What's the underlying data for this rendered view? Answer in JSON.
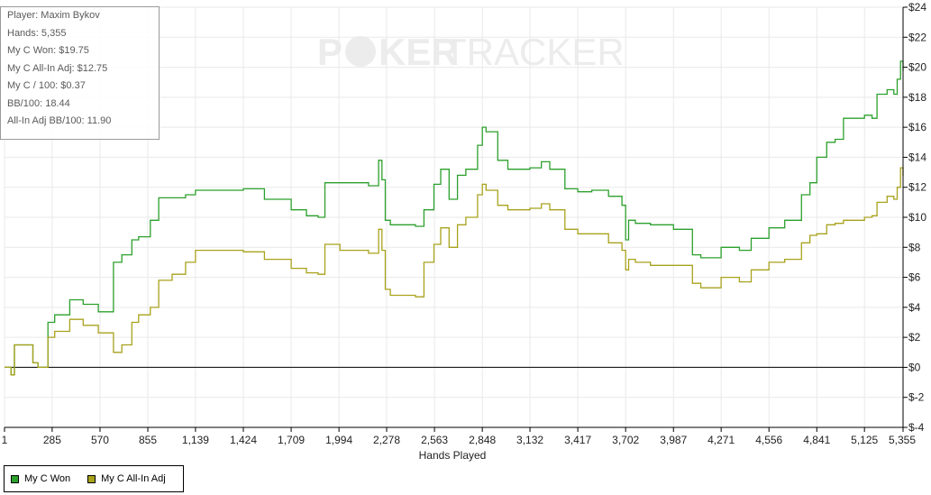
{
  "info_box": {
    "lines": [
      "Player: Maxim Bykov",
      "Hands: 5,355",
      "My C Won: $19.75",
      "My C All-In Adj: $12.75",
      "My C / 100: $0.37",
      "BB/100: 18.44",
      "All-In Adj BB/100: 11.90"
    ]
  },
  "watermark": {
    "left": "P",
    "middle": "KER",
    "right": "TRACKER"
  },
  "colors": {
    "won": "#2ca02c",
    "adj": "#a8a21c",
    "grid": "#e9e9e9",
    "zero_line": "#000000",
    "watermark": "#ececec"
  },
  "chart_data": {
    "type": "line",
    "title": "",
    "xlabel": "Hands Played",
    "ylabel": "",
    "xlim": [
      1,
      5355
    ],
    "ylim": [
      -4,
      24
    ],
    "grid": true,
    "legend_placement": "bottom-left",
    "x_ticks": [
      {
        "value": 1,
        "label": "1"
      },
      {
        "value": 285,
        "label": "285"
      },
      {
        "value": 570,
        "label": "570"
      },
      {
        "value": 855,
        "label": "855"
      },
      {
        "value": 1139,
        "label": "1,139"
      },
      {
        "value": 1424,
        "label": "1,424"
      },
      {
        "value": 1709,
        "label": "1,709"
      },
      {
        "value": 1994,
        "label": "1,994"
      },
      {
        "value": 2278,
        "label": "2,278"
      },
      {
        "value": 2563,
        "label": "2,563"
      },
      {
        "value": 2848,
        "label": "2,848"
      },
      {
        "value": 3132,
        "label": "3,132"
      },
      {
        "value": 3417,
        "label": "3,417"
      },
      {
        "value": 3702,
        "label": "3,702"
      },
      {
        "value": 3987,
        "label": "3,987"
      },
      {
        "value": 4271,
        "label": "4,271"
      },
      {
        "value": 4556,
        "label": "4,556"
      },
      {
        "value": 4841,
        "label": "4,841"
      },
      {
        "value": 5125,
        "label": "5,125"
      },
      {
        "value": 5355,
        "label": "5,355"
      }
    ],
    "y_ticks": [
      {
        "value": 24,
        "label": "$24"
      },
      {
        "value": 22,
        "label": "$22"
      },
      {
        "value": 20,
        "label": "$20"
      },
      {
        "value": 18,
        "label": "$18"
      },
      {
        "value": 16,
        "label": "$16"
      },
      {
        "value": 14,
        "label": "$14"
      },
      {
        "value": 12,
        "label": "$12"
      },
      {
        "value": 10,
        "label": "$10"
      },
      {
        "value": 8,
        "label": "$8"
      },
      {
        "value": 6,
        "label": "$6"
      },
      {
        "value": 4,
        "label": "$4"
      },
      {
        "value": 2,
        "label": "$2"
      },
      {
        "value": 0,
        "label": "$0"
      },
      {
        "value": -2,
        "label": "$-2"
      },
      {
        "value": -4,
        "label": "$-4"
      }
    ],
    "series": [
      {
        "name": "My C Won",
        "color": "#2ca02c",
        "x": [
          1,
          40,
          60,
          150,
          170,
          200,
          260,
          300,
          390,
          470,
          560,
          650,
          700,
          760,
          800,
          870,
          920,
          1000,
          1080,
          1139,
          1300,
          1424,
          1550,
          1709,
          1800,
          1870,
          1910,
          2000,
          2170,
          2230,
          2250,
          2270,
          2300,
          2450,
          2500,
          2560,
          2600,
          2650,
          2700,
          2750,
          2820,
          2848,
          2870,
          2940,
          3000,
          3132,
          3200,
          3250,
          3340,
          3417,
          3500,
          3600,
          3680,
          3702,
          3720,
          3760,
          3850,
          3987,
          4100,
          4150,
          4271,
          4380,
          4450,
          4556,
          4650,
          4750,
          4800,
          4841,
          4900,
          4950,
          5000,
          5125,
          5170,
          5200,
          5260,
          5300,
          5320,
          5340,
          5355
        ],
        "values": [
          0,
          -0.5,
          1.5,
          1.5,
          0.3,
          0,
          3,
          3.5,
          4.5,
          4.2,
          3.7,
          7,
          7.5,
          8.5,
          8.7,
          9.8,
          11.3,
          11.3,
          11.5,
          11.8,
          11.8,
          11.9,
          11.2,
          10.5,
          10.1,
          10.0,
          12.3,
          12.3,
          12.1,
          13.8,
          12.5,
          9.8,
          9.5,
          9.4,
          10.5,
          12.2,
          13.2,
          11.2,
          12.8,
          13.2,
          14.8,
          16,
          15.7,
          13.8,
          13.2,
          13.3,
          13.7,
          13.2,
          11.9,
          11.7,
          11.8,
          11.4,
          10.8,
          8.5,
          9.8,
          9.6,
          9.5,
          9.2,
          7.5,
          7.3,
          8.0,
          7.8,
          8.6,
          9.3,
          9.8,
          11.5,
          12.3,
          14.0,
          15.0,
          15.2,
          16.6,
          16.8,
          16.6,
          18.2,
          18.5,
          18.2,
          19.2,
          20.4,
          19.75
        ]
      },
      {
        "name": "My C All-In Adj",
        "color": "#a8a21c",
        "x": [
          1,
          40,
          60,
          150,
          170,
          200,
          260,
          300,
          390,
          470,
          560,
          650,
          700,
          760,
          800,
          870,
          920,
          1000,
          1080,
          1139,
          1300,
          1424,
          1550,
          1709,
          1800,
          1870,
          1910,
          2000,
          2170,
          2230,
          2250,
          2270,
          2300,
          2450,
          2500,
          2560,
          2600,
          2650,
          2700,
          2750,
          2820,
          2848,
          2870,
          2940,
          3000,
          3132,
          3200,
          3250,
          3340,
          3417,
          3500,
          3600,
          3680,
          3702,
          3720,
          3760,
          3850,
          3987,
          4100,
          4150,
          4271,
          4380,
          4450,
          4556,
          4650,
          4750,
          4800,
          4841,
          4900,
          4950,
          5000,
          5125,
          5170,
          5200,
          5260,
          5300,
          5320,
          5340,
          5355
        ],
        "values": [
          0,
          -0.5,
          1.5,
          1.5,
          0.3,
          0,
          2,
          2.4,
          3.2,
          2.8,
          2.3,
          1.0,
          1.5,
          3.0,
          3.5,
          4.0,
          5.8,
          6.2,
          7.0,
          7.8,
          7.8,
          7.7,
          7.2,
          6.6,
          6.3,
          6.2,
          8.2,
          7.8,
          7.6,
          9.2,
          7.8,
          5.2,
          4.8,
          4.7,
          7.0,
          8.2,
          9.3,
          8.0,
          9.5,
          10.0,
          11.5,
          12.2,
          11.8,
          10.8,
          10.5,
          10.6,
          10.9,
          10.5,
          9.2,
          8.9,
          8.9,
          8.3,
          7.8,
          6.5,
          7.2,
          7.0,
          6.8,
          6.8,
          5.6,
          5.3,
          6.0,
          5.7,
          6.5,
          7.0,
          7.2,
          8.3,
          8.8,
          8.9,
          9.5,
          9.6,
          9.8,
          10.0,
          10.1,
          11.0,
          11.4,
          11.2,
          12.0,
          13.3,
          12.75
        ]
      }
    ]
  }
}
